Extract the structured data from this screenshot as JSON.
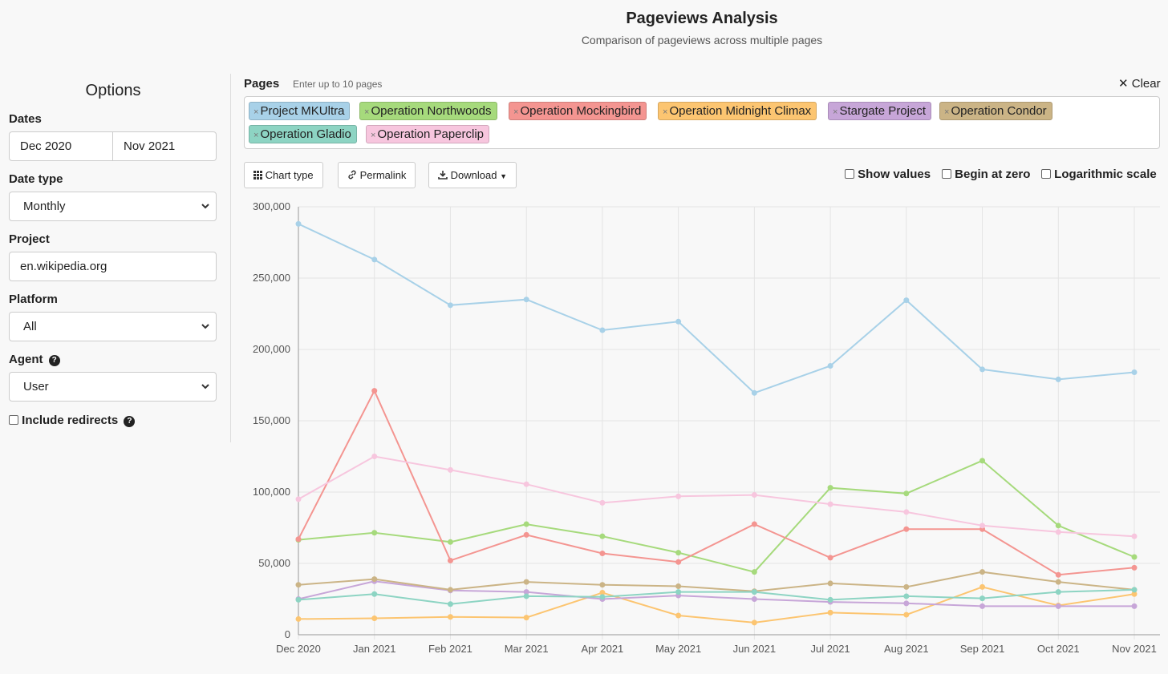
{
  "header": {
    "title": "Pageviews Analysis",
    "subtitle": "Comparison of pageviews across multiple pages"
  },
  "sidebar": {
    "heading": "Options",
    "dates_label": "Dates",
    "date_start": "Dec 2020",
    "date_end": "Nov 2021",
    "date_type_label": "Date type",
    "date_type_value": "Monthly",
    "project_label": "Project",
    "project_value": "en.wikipedia.org",
    "platform_label": "Platform",
    "platform_value": "All",
    "agent_label": "Agent",
    "agent_value": "User",
    "redirects_label": "Include redirects",
    "redirects_checked": false
  },
  "pages": {
    "label": "Pages",
    "hint": "Enter up to 10 pages",
    "clear_label": "Clear",
    "chips": [
      {
        "name": "Project MKUltra",
        "color": "#a8d1e8"
      },
      {
        "name": "Operation Northwoods",
        "color": "#a6da7c"
      },
      {
        "name": "Operation Mockingbird",
        "color": "#f49591"
      },
      {
        "name": "Operation Midnight Climax",
        "color": "#fcc571"
      },
      {
        "name": "Stargate Project",
        "color": "#c7a6d8"
      },
      {
        "name": "Operation Condor",
        "color": "#cbb486"
      },
      {
        "name": "Operation Gladio",
        "color": "#8dd4c3"
      },
      {
        "name": "Operation Paperclip",
        "color": "#f7c6de"
      }
    ]
  },
  "toolbar": {
    "chart_type": "Chart type",
    "permalink": "Permalink",
    "download": "Download",
    "show_values": "Show values",
    "begin_at_zero": "Begin at zero",
    "log_scale": "Logarithmic scale"
  },
  "chart_data": {
    "type": "line",
    "x": [
      "Dec 2020",
      "Jan 2021",
      "Feb 2021",
      "Mar 2021",
      "Apr 2021",
      "May 2021",
      "Jun 2021",
      "Jul 2021",
      "Aug 2021",
      "Sep 2021",
      "Oct 2021",
      "Nov 2021"
    ],
    "ylim": [
      0,
      300000
    ],
    "yticks": [
      0,
      50000,
      100000,
      150000,
      200000,
      250000,
      300000
    ],
    "grid": true,
    "series": [
      {
        "name": "Project MKUltra",
        "color": "#a8d1e8",
        "values": [
          288000,
          263000,
          231000,
          235000,
          213500,
          219500,
          169500,
          188500,
          234500,
          186000,
          179000,
          184000
        ]
      },
      {
        "name": "Operation Northwoods",
        "color": "#a6da7c",
        "values": [
          66500,
          71500,
          65000,
          77500,
          69000,
          57500,
          44000,
          103000,
          99000,
          122000,
          76500,
          54500
        ]
      },
      {
        "name": "Operation Mockingbird",
        "color": "#f49591",
        "values": [
          67000,
          171000,
          52000,
          70000,
          57000,
          51000,
          77500,
          54000,
          74000,
          74000,
          42000,
          47000
        ]
      },
      {
        "name": "Operation Midnight Climax",
        "color": "#fcc571",
        "values": [
          11000,
          11500,
          12500,
          12000,
          29500,
          13500,
          8500,
          15500,
          14000,
          33500,
          20500,
          28500
        ]
      },
      {
        "name": "Stargate Project",
        "color": "#c7a6d8",
        "values": [
          25000,
          37500,
          31000,
          30000,
          25000,
          27500,
          25000,
          23000,
          22000,
          20000,
          20000,
          20000
        ]
      },
      {
        "name": "Operation Condor",
        "color": "#cbb486",
        "values": [
          35000,
          39000,
          31500,
          37000,
          35000,
          34000,
          30500,
          36000,
          33500,
          44000,
          37000,
          31500
        ]
      },
      {
        "name": "Operation Gladio",
        "color": "#8dd4c3",
        "values": [
          24500,
          28500,
          21500,
          27000,
          26500,
          30000,
          30000,
          24500,
          27000,
          25500,
          30000,
          31500
        ]
      },
      {
        "name": "Operation Paperclip",
        "color": "#f7c6de",
        "values": [
          95000,
          125000,
          115500,
          105500,
          92500,
          97000,
          98000,
          91500,
          86000,
          76500,
          72000,
          69000
        ]
      }
    ]
  }
}
